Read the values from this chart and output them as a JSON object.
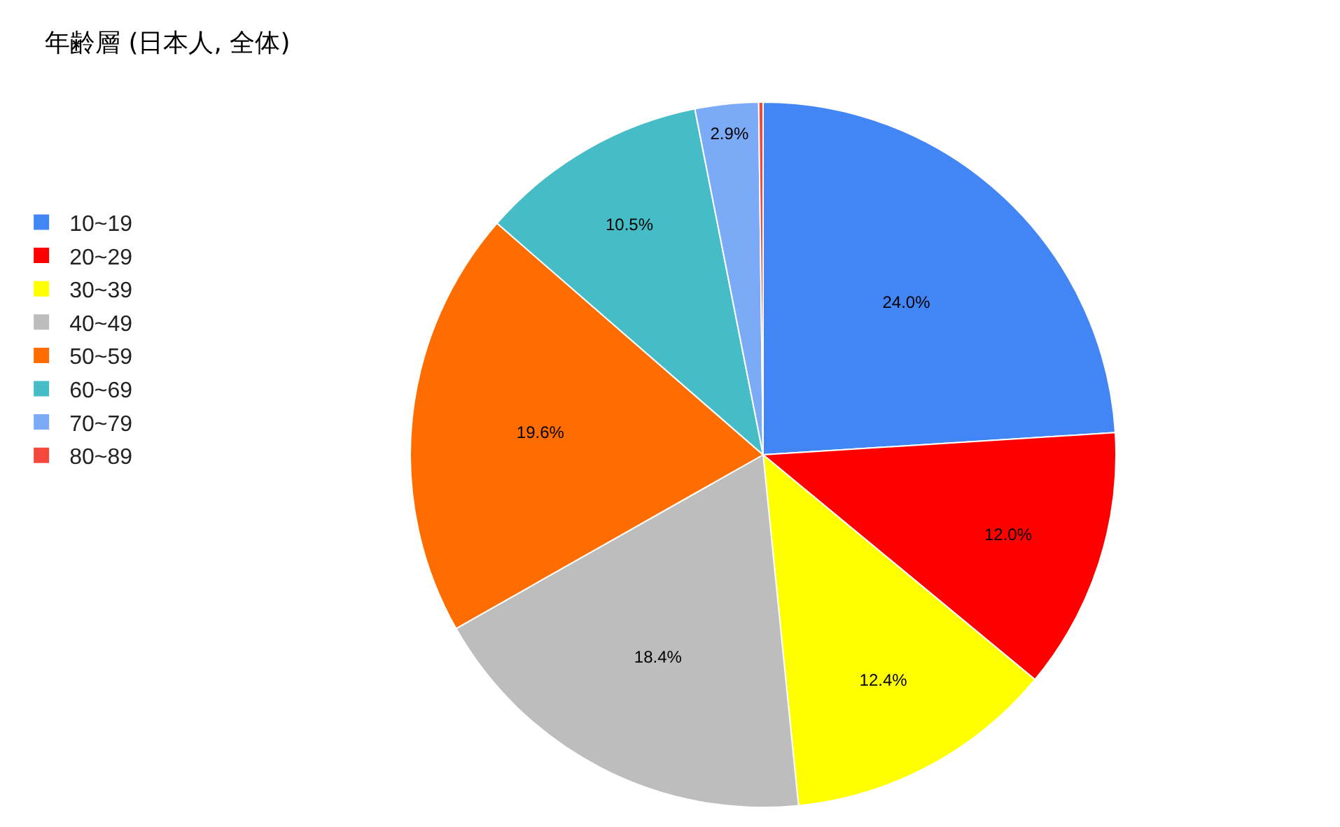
{
  "chart_data": {
    "type": "pie",
    "title": "年齢層 (日本人, 全体)",
    "categories": [
      "10~19",
      "20~29",
      "30~39",
      "40~49",
      "50~59",
      "60~69",
      "70~79",
      "80~89"
    ],
    "values": [
      24.0,
      12.0,
      12.4,
      18.4,
      19.6,
      10.5,
      2.9,
      0.2
    ],
    "colors": [
      "#4285f4",
      "#ff0000",
      "#ffff00",
      "#bdbdbd",
      "#ff6d01",
      "#46bdc6",
      "#7baaf7",
      "#f4483c"
    ],
    "value_labels": [
      "24.0%",
      "12.0%",
      "12.4%",
      "18.4%",
      "19.6%",
      "10.5%",
      "2.9%",
      null
    ],
    "legend": "left"
  }
}
